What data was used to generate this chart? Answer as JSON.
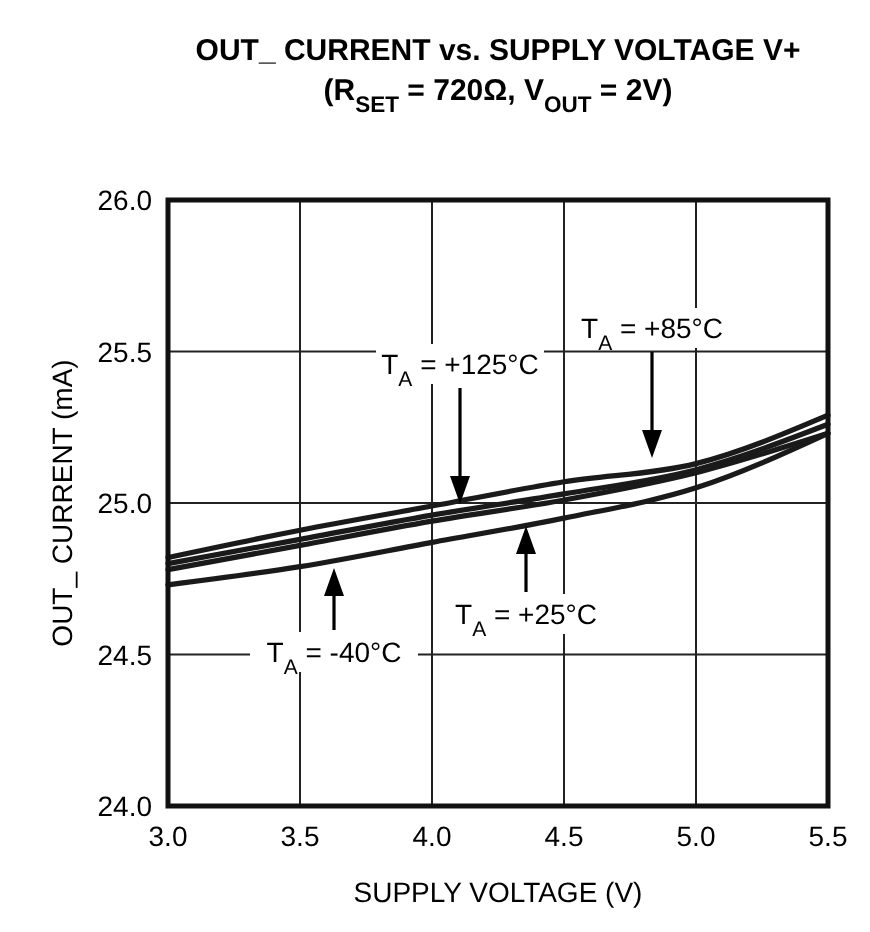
{
  "chart_data": {
    "type": "line",
    "title": "OUT_ CURRENT vs. SUPPLY VOLTAGE V+\n(R$_{SET}$ = 720Ω, V$_{OUT}$ = 2V)",
    "xlabel": "SUPPLY VOLTAGE (V)",
    "ylabel": "OUT_ CURRENT (mA)",
    "x": [
      3.0,
      3.5,
      4.0,
      4.5,
      5.0,
      5.5
    ],
    "series": [
      {
        "color": "#1a1a1a",
        "values": [
          24.82,
          24.91,
          24.99,
          25.07,
          25.13,
          25.29
        ]
      },
      {
        "color": "#1a1a1a",
        "values": [
          24.8,
          24.88,
          24.96,
          25.03,
          25.11,
          25.26
        ]
      },
      {
        "color": "#1a1a1a",
        "values": [
          24.78,
          24.86,
          24.94,
          25.01,
          25.1,
          25.23
        ]
      },
      {
        "color": "#1a1a1a",
        "values": [
          24.73,
          24.79,
          24.87,
          24.95,
          25.05,
          25.23
        ]
      }
    ],
    "xlim": [
      3.0,
      5.5
    ],
    "xticks": [
      {
        "value": 3,
        "label": "3.0"
      },
      3.5,
      {
        "value": 4,
        "label": "4.0"
      },
      4.5,
      {
        "value": 5,
        "label": "5.0"
      },
      5.5
    ],
    "ylim": [
      24.0,
      26.0
    ],
    "yticks": [
      {
        "value": 24,
        "label": "24.0"
      },
      24.5,
      {
        "value": 25,
        "label": "25.0"
      },
      25.5,
      {
        "value": 26,
        "label": "26.0"
      }
    ],
    "grid": true,
    "marker": "none",
    "line_style": "solid",
    "annotations": [
      "T$_{A}$ = +125°C",
      "T$_{A}$ = +85°C",
      "T$_{A}$ = +25°C",
      "T$_{A}$ = -40°C"
    ]
  }
}
